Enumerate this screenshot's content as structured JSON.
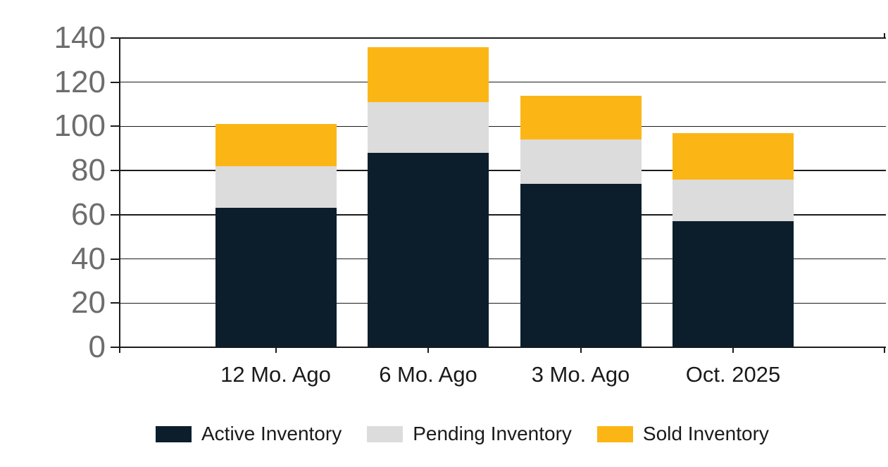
{
  "page": {
    "background": "#ffffff"
  },
  "chart_data": {
    "type": "bar",
    "stacked": true,
    "title": "",
    "xlabel": "",
    "ylabel": "",
    "categories": [
      "12 Mo. Ago",
      "6 Mo. Ago",
      "3 Mo. Ago",
      "Oct. 2025"
    ],
    "series": [
      {
        "name": "Active Inventory",
        "color": "#0c1e2b",
        "values": [
          63,
          88,
          74,
          57
        ]
      },
      {
        "name": "Pending Inventory",
        "color": "#dcdcdc",
        "values": [
          19,
          23,
          20,
          19
        ]
      },
      {
        "name": "Sold Inventory",
        "color": "#fbb616",
        "values": [
          19,
          25,
          20,
          21
        ]
      }
    ],
    "stack_totals": [
      101,
      136,
      114,
      97
    ],
    "ylim": [
      0,
      140
    ],
    "yticks": [
      0,
      20,
      40,
      60,
      80,
      100,
      120,
      140
    ],
    "grid": true,
    "gridline_color": "#1c1c1c",
    "axis_line_color": "#1c1c1c",
    "y_tick_label_color": "#6d6d6d",
    "x_tick_label_color": "#1a1a1a",
    "legend_position": "bottom",
    "legend_text_color": "#1a1a1a"
  }
}
